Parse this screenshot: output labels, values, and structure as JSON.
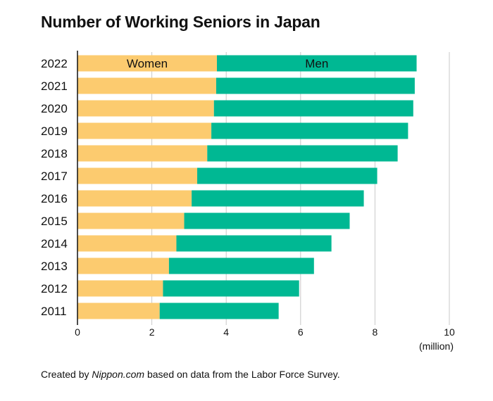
{
  "title": "Number of Working Seniors in Japan",
  "footer": {
    "prefix": "Created by ",
    "source_name": "Nippon.com",
    "suffix": " based on data from the Labor Force Survey."
  },
  "colors": {
    "women": "#FCCB6F",
    "men": "#00B893",
    "gridline": "#C8C8C8",
    "axis": "#111111"
  },
  "chart_data": {
    "type": "bar",
    "orientation": "horizontal",
    "stacked": true,
    "categories": [
      "2022",
      "2021",
      "2020",
      "2019",
      "2018",
      "2017",
      "2016",
      "2015",
      "2014",
      "2013",
      "2012",
      "2011"
    ],
    "series": [
      {
        "name": "Women",
        "values": [
          3.75,
          3.73,
          3.67,
          3.6,
          3.49,
          3.22,
          3.07,
          2.87,
          2.66,
          2.46,
          2.3,
          2.21
        ]
      },
      {
        "name": "Men",
        "values": [
          5.37,
          5.34,
          5.36,
          5.29,
          5.12,
          4.84,
          4.63,
          4.45,
          4.17,
          3.9,
          3.66,
          3.2
        ]
      }
    ],
    "xlim": [
      0,
      10
    ],
    "xticks": [
      "0",
      "2",
      "4",
      "6",
      "8",
      "10"
    ],
    "xunit": "(million)",
    "grid": true
  }
}
